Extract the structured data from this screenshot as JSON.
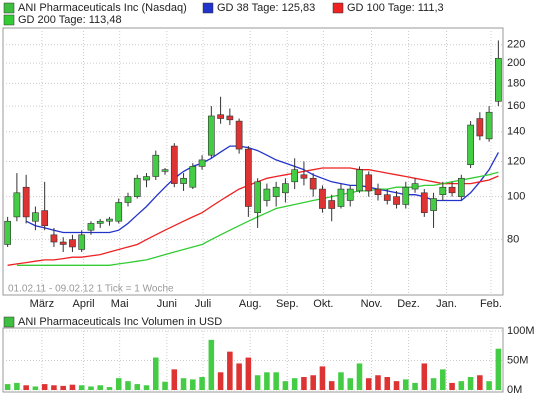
{
  "chart_data": [
    {
      "type": "candlestick",
      "title": "ANI Pharmaceuticals Inc (Nasdaq)",
      "color": "#3fbf3f",
      "up_color": "#44cc44",
      "down_color": "#dd3333",
      "annotation": "01.02.11 - 09.02.12   1 Tick = 1 Woche",
      "open": [
        78,
        90,
        105,
        88,
        93,
        82,
        79,
        80,
        76,
        84,
        87,
        88,
        88,
        97,
        100,
        109,
        111,
        114,
        130,
        107,
        105,
        117,
        124,
        153,
        152,
        148,
        128,
        92,
        98,
        100,
        102,
        108,
        112,
        110,
        104,
        98,
        95,
        98,
        103,
        112,
        104,
        101,
        100,
        96,
        104,
        102,
        93,
        101,
        105,
        100,
        118,
        150,
        135,
        164
      ],
      "high": [
        90,
        113,
        112,
        95,
        108,
        85,
        81,
        82,
        84,
        88,
        89,
        90,
        99,
        102,
        112,
        113,
        127,
        116,
        132,
        113,
        119,
        124,
        160,
        168,
        158,
        150,
        130,
        110,
        107,
        108,
        110,
        122,
        120,
        113,
        106,
        101,
        107,
        106,
        117,
        114,
        107,
        104,
        103,
        108,
        110,
        104,
        102,
        108,
        108,
        112,
        148,
        155,
        160,
        225
      ],
      "low": [
        77,
        88,
        87,
        84,
        84,
        77,
        75,
        75,
        75,
        82,
        85,
        86,
        87,
        95,
        99,
        105,
        109,
        112,
        105,
        103,
        104,
        115,
        122,
        146,
        145,
        125,
        90,
        85,
        95,
        95,
        97,
        104,
        106,
        100,
        92,
        88,
        94,
        95,
        102,
        100,
        98,
        96,
        94,
        94,
        102,
        90,
        85,
        98,
        100,
        98,
        116,
        134,
        133,
        160
      ],
      "close": [
        88,
        102,
        90,
        92,
        86,
        79,
        78,
        77,
        82,
        87,
        88,
        89,
        97,
        100,
        110,
        111,
        124,
        115,
        107,
        110,
        117,
        121,
        152,
        150,
        149,
        128,
        95,
        108,
        104,
        105,
        107,
        115,
        110,
        104,
        94,
        94,
        104,
        104,
        115,
        103,
        101,
        98,
        96,
        105,
        107,
        92,
        99,
        105,
        102,
        110,
        145,
        137,
        155,
        205
      ],
      "series": [
        {
          "name": "GD 38 Tage: 125,83",
          "color": "#2233cc",
          "values": [
            null,
            null,
            88,
            86,
            85,
            84,
            83,
            83,
            83,
            83,
            83,
            83,
            84,
            87,
            91,
            95,
            100,
            105,
            110,
            114,
            117,
            119,
            122,
            126,
            130,
            130,
            129,
            127,
            124,
            121,
            119,
            117,
            115,
            112,
            110,
            108,
            107,
            106,
            106,
            105,
            104,
            103,
            102,
            101,
            101,
            100,
            98,
            98,
            98,
            98,
            102,
            108,
            115,
            125.83
          ]
        },
        {
          "name": "GD 100 Tage: 111,3",
          "color": "#ee2222",
          "values": [
            70,
            70.5,
            71,
            71.5,
            72,
            72,
            72.5,
            73,
            73,
            73.5,
            74,
            75,
            76,
            77,
            78,
            80,
            82,
            84,
            86,
            88,
            90,
            92,
            95,
            98,
            101,
            104,
            106,
            108,
            110,
            111,
            112,
            113,
            114,
            115,
            116,
            116,
            116,
            116,
            115,
            115,
            114,
            113,
            112,
            111,
            110,
            109,
            108,
            107,
            107,
            107,
            107,
            108,
            109,
            111.3
          ]
        },
        {
          "name": "GD 200 Tage: 113,48",
          "color": "#33cc33",
          "values": [
            null,
            70,
            70,
            70,
            70,
            70,
            70,
            70,
            70,
            70,
            70,
            70,
            70.5,
            71,
            71.5,
            72,
            73,
            74,
            75,
            76,
            77,
            78,
            80,
            82,
            84,
            86,
            88,
            90,
            92,
            94,
            95,
            96,
            97,
            98,
            99,
            100,
            101,
            102,
            103,
            103,
            104,
            104,
            105,
            105,
            105,
            106,
            106,
            107,
            108,
            109,
            110,
            111,
            112,
            113.48
          ]
        }
      ],
      "xlim": [
        -0.5,
        53.5
      ],
      "xticks": [
        {
          "value": 3.7,
          "label": "März"
        },
        {
          "value": 8.2,
          "label": "April"
        },
        {
          "value": 12.1,
          "label": "Mai"
        },
        {
          "value": 17.2,
          "label": "Juni"
        },
        {
          "value": 21.1,
          "label": "Juli"
        },
        {
          "value": 26.2,
          "label": "Aug."
        },
        {
          "value": 30.2,
          "label": "Sep."
        },
        {
          "value": 34.1,
          "label": "Okt."
        },
        {
          "value": 39.3,
          "label": "Nov."
        },
        {
          "value": 43.3,
          "label": "Dez."
        },
        {
          "value": 47.4,
          "label": "Jan."
        },
        {
          "value": 52.2,
          "label": "Feb."
        }
      ],
      "ylim": [
        60,
        240
      ],
      "yticks": [
        80,
        100,
        120,
        140,
        160,
        180,
        200,
        220
      ],
      "log_scale": true,
      "grid": true
    },
    {
      "type": "bar",
      "title": "ANI Pharmaceuticals Inc Volumen in USD",
      "color": "#3fbf3f",
      "values": [
        10,
        12,
        8,
        6,
        10,
        8,
        7,
        9,
        8,
        6,
        8,
        5,
        20,
        15,
        10,
        8,
        55,
        14,
        35,
        20,
        18,
        22,
        85,
        30,
        65,
        45,
        55,
        25,
        30,
        30,
        15,
        20,
        22,
        25,
        40,
        15,
        30,
        20,
        45,
        20,
        25,
        22,
        15,
        18,
        12,
        45,
        20,
        35,
        12,
        15,
        22,
        25,
        15,
        70
      ],
      "ylim": [
        0,
        100
      ],
      "yticks": [
        {
          "value": 0,
          "label": "0M"
        },
        {
          "value": 50,
          "label": "50M"
        },
        {
          "value": 100,
          "label": "100M"
        }
      ],
      "grid": true
    }
  ]
}
